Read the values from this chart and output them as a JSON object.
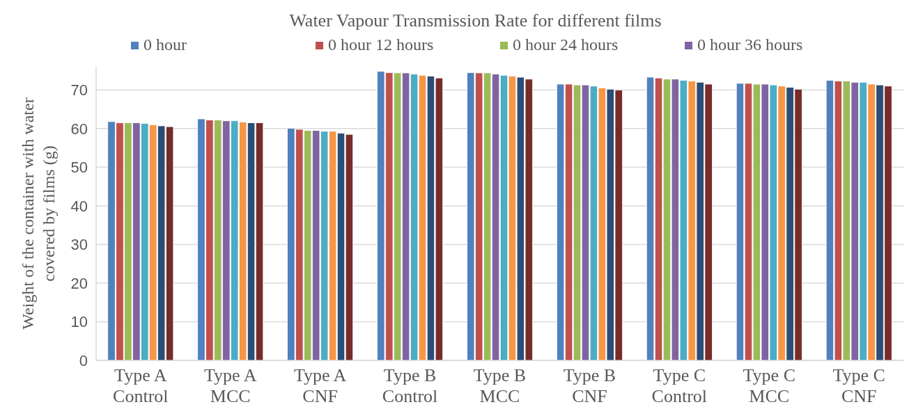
{
  "chart_data": {
    "type": "bar",
    "title": "Water  Vapour Transmission Rate  for different films",
    "ylabel": "Weight  of the container with water covered by films (g)",
    "categories": [
      "Type A Control",
      "Type A MCC",
      "Type A CNF",
      "Type B Control",
      "Type B MCC",
      "Type B CNF",
      "Type C Control",
      "Type C MCC",
      "Type C CNF"
    ],
    "series": [
      {
        "name": "0 hour",
        "color": "#4f81bd",
        "values": [
          61.8,
          62.5,
          60.1,
          74.8,
          74.5,
          71.5,
          73.3,
          71.7,
          72.5
        ]
      },
      {
        "name": "0 hour 12 hours",
        "color": "#c0504d",
        "values": [
          61.5,
          62.2,
          59.8,
          74.5,
          74.4,
          71.5,
          73.1,
          71.7,
          72.3
        ]
      },
      {
        "name": "0 hour 24 hours",
        "color": "#9bbb59",
        "values": [
          61.5,
          62.2,
          59.5,
          74.4,
          74.4,
          71.3,
          72.8,
          71.5,
          72.3
        ]
      },
      {
        "name": "0 hour 36 hours",
        "color": "#8064a2",
        "values": [
          61.5,
          62.0,
          59.5,
          74.4,
          74.1,
          71.3,
          72.8,
          71.5,
          72.0
        ]
      },
      {
        "color": "#4bacc6",
        "values": [
          61.3,
          62.0,
          59.3,
          74.1,
          73.8,
          71.0,
          72.5,
          71.3,
          72.0
        ]
      },
      {
        "color": "#f79646",
        "values": [
          61.0,
          61.7,
          59.3,
          73.8,
          73.6,
          70.5,
          72.3,
          71.0,
          71.5
        ]
      },
      {
        "color": "#2c4d75",
        "values": [
          60.7,
          61.5,
          58.8,
          73.6,
          73.3,
          70.2,
          72.0,
          70.7,
          71.3
        ]
      },
      {
        "color": "#772c2a",
        "values": [
          60.5,
          61.5,
          58.5,
          73.1,
          72.8,
          70.0,
          71.5,
          70.2,
          71.0
        ]
      }
    ],
    "ylim": [
      0,
      76
    ],
    "yticks": [
      0,
      10,
      20,
      30,
      40,
      50,
      60,
      70
    ],
    "grid": "y",
    "legend": "top"
  }
}
